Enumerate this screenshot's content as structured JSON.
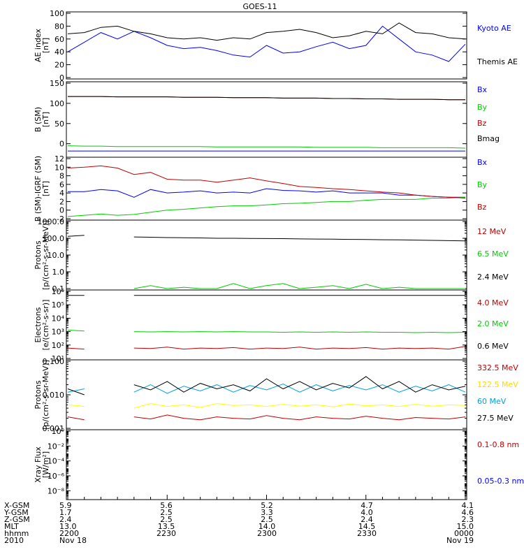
{
  "title": "GOES-11",
  "colors": {
    "black": "#000000",
    "blue": "#0000ff",
    "red": "#c00000",
    "green": "#00cc00",
    "yellow": "#ffff00",
    "cyan": "#00a0e0",
    "darkred": "#a00000"
  },
  "chart_data": [
    {
      "type": "line",
      "panel": "AE index",
      "ylabel_lines": [
        "AE index",
        "[nT]"
      ],
      "ylim": [
        0,
        100
      ],
      "yticks": [
        0,
        20,
        40,
        60,
        80,
        100
      ],
      "ytick_labels": [
        "0",
        "20",
        "40",
        "60",
        "80",
        "100"
      ],
      "x": [
        2200,
        2205,
        2210,
        2215,
        2220,
        2225,
        2230,
        2235,
        2240,
        2245,
        2250,
        2255,
        2300,
        2305,
        2310,
        2315,
        2320,
        2325,
        2330,
        2335,
        2340,
        2345,
        2350,
        2355,
        2400
      ],
      "series": [
        {
          "name": "Kyoto AE",
          "color": "#0000ff",
          "values": [
            40,
            55,
            70,
            60,
            72,
            62,
            50,
            45,
            47,
            42,
            35,
            32,
            50,
            38,
            40,
            48,
            55,
            45,
            50,
            80,
            60,
            40,
            35,
            25,
            52
          ]
        },
        {
          "name": "Themis AE",
          "color": "#000000",
          "values": [
            68,
            70,
            78,
            80,
            72,
            68,
            62,
            60,
            62,
            58,
            62,
            60,
            70,
            72,
            75,
            70,
            62,
            65,
            72,
            68,
            85,
            70,
            68,
            62,
            60
          ]
        }
      ]
    },
    {
      "type": "line",
      "panel": "B (SM)",
      "ylabel_lines": [
        "B (SM)",
        "[nT]"
      ],
      "ylim": [
        -30,
        150
      ],
      "yticks": [
        0,
        50,
        100,
        150
      ],
      "ytick_labels": [
        "0",
        "50",
        "100",
        "150"
      ],
      "series": [
        {
          "name": "Bx",
          "color": "#0000ff",
          "values": [
            -18,
            -18,
            -18,
            -18,
            -18,
            -18,
            -18,
            -18,
            -18,
            -18,
            -18,
            -18,
            -18,
            -18,
            -18,
            -18,
            -18,
            -18,
            -18,
            -18,
            -18,
            -18,
            -18,
            -18,
            -18
          ]
        },
        {
          "name": "By",
          "color": "#00cc00",
          "values": [
            -5,
            -6,
            -6,
            -7,
            -7,
            -7,
            -7,
            -7,
            -7,
            -8,
            -8,
            -8,
            -8,
            -8,
            -8,
            -9,
            -9,
            -9,
            -9,
            -10,
            -10,
            -10,
            -10,
            -10,
            -11
          ]
        },
        {
          "name": "Bz",
          "color": "#c00000",
          "values": [
            117,
            117,
            117,
            116,
            116,
            116,
            116,
            115,
            115,
            115,
            114,
            114,
            114,
            113,
            113,
            113,
            112,
            112,
            111,
            111,
            110,
            110,
            110,
            109,
            109
          ]
        },
        {
          "name": "Bmag",
          "color": "#000000",
          "values": [
            117,
            117,
            117,
            116,
            116,
            116,
            116,
            115,
            115,
            115,
            114,
            114,
            114,
            113,
            113,
            113,
            112,
            112,
            111,
            111,
            110,
            110,
            110,
            109,
            109
          ]
        }
      ]
    },
    {
      "type": "line",
      "panel": "B (SM)-IGRF (SM)",
      "ylabel_lines": [
        "B (SM)-IGRF (SM)",
        "[nT]"
      ],
      "ylim": [
        -2,
        12
      ],
      "yticks": [
        -2,
        0,
        2,
        4,
        6,
        8,
        10,
        12
      ],
      "ytick_labels": [
        "-2",
        "0",
        "2",
        "4",
        "6",
        "8",
        "10",
        "12"
      ],
      "series": [
        {
          "name": "Bx",
          "color": "#0000ff",
          "values": [
            4.3,
            4.3,
            4.8,
            4.5,
            3.0,
            4.8,
            4.0,
            4.2,
            4.5,
            4.0,
            4.2,
            4.0,
            5.0,
            4.6,
            4.5,
            4.2,
            4.5,
            4.0,
            4.0,
            4.0,
            3.5,
            3.5,
            3.2,
            3.0,
            3.0
          ]
        },
        {
          "name": "By",
          "color": "#00cc00",
          "values": [
            -1.5,
            -1.2,
            -0.9,
            -1.2,
            -1.0,
            -0.5,
            0.0,
            0.2,
            0.5,
            0.8,
            1.0,
            1.0,
            1.2,
            1.5,
            1.6,
            1.8,
            2.0,
            2.0,
            2.3,
            2.5,
            2.5,
            2.5,
            2.8,
            2.8,
            3.0
          ]
        },
        {
          "name": "Bz",
          "color": "#c00000",
          "values": [
            9.8,
            10.0,
            10.3,
            9.8,
            8.3,
            8.8,
            7.2,
            7.0,
            7.0,
            6.5,
            7.0,
            7.5,
            6.8,
            6.2,
            5.5,
            5.3,
            5.0,
            4.8,
            4.5,
            4.2,
            4.0,
            3.5,
            3.2,
            3.0,
            2.8
          ]
        }
      ]
    },
    {
      "type": "line",
      "panel": "Protons",
      "ylabel_lines": [
        "Protons",
        "[p/(cm²-s-sr-MeV)]"
      ],
      "yscale": "log",
      "ylim": [
        0.1,
        1000
      ],
      "yticks": [
        0.1,
        1,
        10,
        100,
        1000
      ],
      "ytick_labels": [
        "0.1",
        "1.0",
        "10.0",
        "100.0",
        "1000.0"
      ],
      "series": [
        {
          "name": "12 MeV",
          "color": "#c00000",
          "values": [
            null,
            null,
            null,
            null,
            null,
            null,
            null,
            null,
            null,
            null,
            null,
            0.12,
            null,
            0.15,
            null,
            null,
            null,
            0.15,
            null,
            null,
            null,
            null,
            null,
            null,
            null
          ]
        },
        {
          "name": "6.5 MeV",
          "color": "#00cc00",
          "values": [
            null,
            null,
            null,
            null,
            0.1,
            0.15,
            0.1,
            0.12,
            0.1,
            0.1,
            0.2,
            0.1,
            0.15,
            0.2,
            0.1,
            0.12,
            0.15,
            0.1,
            0.18,
            0.1,
            0.12,
            0.1,
            0.1,
            0.1,
            0.1
          ]
        },
        {
          "name": "2.4 MeV",
          "color": "#000000",
          "values": [
            130,
            150,
            null,
            null,
            120,
            115,
            110,
            108,
            105,
            100,
            100,
            98,
            96,
            95,
            92,
            90,
            88,
            86,
            84,
            82,
            80,
            78,
            75,
            72,
            70
          ]
        }
      ]
    },
    {
      "type": "line",
      "panel": "Electrons",
      "ylabel_lines": [
        "Electrons",
        "[e/(cm²-s-sr)]"
      ],
      "yscale": "log",
      "ylim": [
        10,
        1000000
      ],
      "yticks": [
        10,
        100,
        1000,
        10000,
        100000,
        1000000
      ],
      "ytick_labels": [
        "10¹",
        "10²",
        "10³",
        "10⁴",
        "10⁵",
        "10⁶"
      ],
      "series": [
        {
          "name": "4.0 MeV",
          "color": "#c00000",
          "values": [
            60,
            50,
            null,
            null,
            60,
            55,
            70,
            50,
            60,
            55,
            65,
            50,
            60,
            55,
            70,
            50,
            60,
            55,
            65,
            50,
            60,
            55,
            60,
            50,
            80
          ]
        },
        {
          "name": "2.0 MeV",
          "color": "#00cc00",
          "values": [
            1300,
            1100,
            null,
            null,
            1000,
            950,
            1000,
            950,
            1000,
            950,
            1000,
            950,
            950,
            900,
            950,
            900,
            950,
            900,
            950,
            900,
            900,
            850,
            900,
            850,
            900
          ]
        },
        {
          "name": "0.6 MeV",
          "color": "#000000",
          "values": [
            500000,
            500000,
            null,
            null,
            500000,
            500000,
            500000,
            500000,
            500000,
            500000,
            500000,
            500000,
            500000,
            500000,
            500000,
            500000,
            500000,
            500000,
            500000,
            500000,
            500000,
            500000,
            500000,
            500000,
            500000
          ]
        }
      ]
    },
    {
      "type": "line",
      "panel": "Protons high energy",
      "ylabel_lines": [
        "Protons",
        "[p/(cm²-s-sr-MeV)]"
      ],
      "yscale": "log",
      "ylim": [
        0.001,
        0.1
      ],
      "yticks": [
        0.001,
        0.01,
        0.1
      ],
      "ytick_labels": [
        "0.001",
        "0.010",
        "0.100"
      ],
      "series": [
        {
          "name": "332.5 MeV",
          "color": "#c00000",
          "values": [
            0.0022,
            0.0018,
            null,
            null,
            0.0022,
            0.0019,
            0.0025,
            0.002,
            0.0018,
            0.0022,
            0.002,
            0.0019,
            0.0024,
            0.002,
            0.0018,
            0.0022,
            0.002,
            0.0019,
            0.0023,
            0.002,
            0.0018,
            0.0021,
            0.002,
            0.0019,
            0.0022
          ]
        },
        {
          "name": "122.5 MeV",
          "color": "#ffff00",
          "values": [
            0.005,
            0.0045,
            null,
            null,
            0.004,
            0.0055,
            0.0045,
            0.005,
            0.0042,
            0.0055,
            0.0048,
            0.005,
            0.0045,
            0.0052,
            0.0046,
            0.005,
            0.0044,
            0.0053,
            0.0047,
            0.005,
            0.0045,
            0.0052,
            0.0046,
            0.005,
            0.0048
          ]
        },
        {
          "name": "60 MeV",
          "color": "#00a0e0",
          "values": [
            0.012,
            0.015,
            null,
            null,
            0.012,
            0.02,
            0.011,
            0.018,
            0.013,
            0.02,
            0.012,
            0.019,
            0.014,
            0.021,
            0.012,
            0.02,
            0.013,
            0.019,
            0.014,
            0.02,
            0.012,
            0.018,
            0.013,
            0.02,
            0.012
          ]
        },
        {
          "name": "27.5 MeV",
          "color": "#000000",
          "values": [
            0.015,
            0.01,
            null,
            null,
            0.02,
            0.014,
            0.025,
            0.012,
            0.022,
            0.015,
            0.02,
            0.013,
            0.03,
            0.015,
            0.025,
            0.014,
            0.022,
            0.016,
            0.035,
            0.015,
            0.025,
            0.012,
            0.02,
            0.014,
            0.018
          ]
        }
      ]
    },
    {
      "type": "line",
      "panel": "Xray Flux",
      "ylabel_lines": [
        "Xray Flux",
        "[W/m²]"
      ],
      "yscale": "log",
      "ylim": [
        1e-09,
        1
      ],
      "yticks": [
        1e-08,
        1e-06,
        0.0001,
        0.01,
        1
      ],
      "ytick_labels": [
        "10⁻⁸",
        "10⁻⁶",
        "10⁻⁴",
        "10⁻²",
        "10⁰"
      ],
      "series": [
        {
          "name": "0.1-0.8 nm",
          "color": "#c00000",
          "values": []
        },
        {
          "name": "0.05-0.3 nm",
          "color": "#0000ff",
          "values": []
        }
      ]
    }
  ],
  "footer": {
    "rows": [
      {
        "label": "X-GSM",
        "values": [
          "5.9",
          "5.6",
          "5.2",
          "4.7",
          "4.1"
        ]
      },
      {
        "label": "Y-GSM",
        "values": [
          "1.7",
          "2.5",
          "3.3",
          "4.0",
          "4.6"
        ]
      },
      {
        "label": "Z-GSM",
        "values": [
          "2.4",
          "2.5",
          "2.5",
          "2.4",
          "2.3"
        ]
      },
      {
        "label": "MLT",
        "values": [
          "13.0",
          "13.5",
          "14.0",
          "14.5",
          "15.0"
        ]
      },
      {
        "label": "hhmm",
        "values": [
          "2200",
          "2230",
          "2300",
          "2330",
          "0000"
        ]
      },
      {
        "label": "2010",
        "values": [
          "Nov 18",
          "",
          "",
          "",
          "Nov 19"
        ]
      }
    ]
  }
}
